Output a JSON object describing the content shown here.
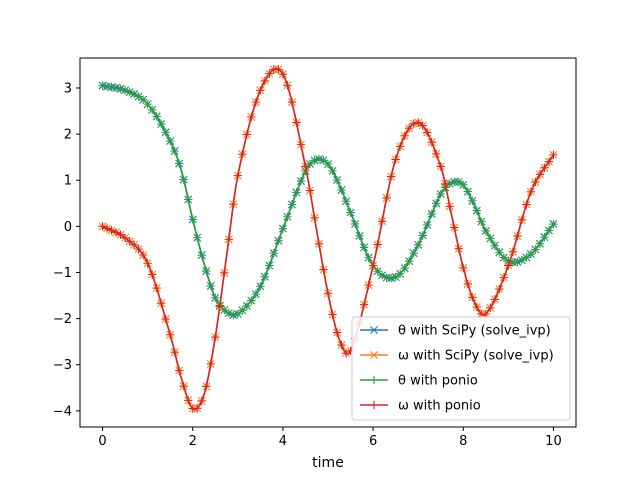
{
  "chart_data": {
    "type": "line",
    "xlabel": "time",
    "ylabel": "",
    "xlim": [
      -0.5,
      10.5
    ],
    "ylim": [
      -4.35,
      3.65
    ],
    "xticks": [
      0,
      2,
      4,
      6,
      8,
      10
    ],
    "yticks": [
      -4,
      -3,
      -2,
      -1,
      0,
      1,
      2,
      3
    ],
    "grid": false,
    "legend_position": "lower-right",
    "x": [
      0,
      0.5,
      1,
      1.5,
      1.75,
      2,
      2.25,
      2.5,
      2.75,
      3,
      3.5,
      4,
      4.5,
      4.75,
      5,
      5.25,
      5.5,
      6,
      6.5,
      7,
      7.5,
      7.75,
      8,
      8.25,
      8.5,
      9,
      9.5,
      10
    ],
    "series": [
      {
        "name": "θ with SciPy (solve_ivp)",
        "color": "#1f77b4",
        "marker": "x",
        "values": [
          3.05,
          2.95,
          2.65,
          1.85,
          1.2,
          0.15,
          -0.8,
          -1.55,
          -1.85,
          -1.9,
          -1.3,
          -0.05,
          1.2,
          1.45,
          1.35,
          0.9,
          0.3,
          -0.85,
          -1.1,
          -0.4,
          0.7,
          0.95,
          0.9,
          0.45,
          -0.1,
          -0.75,
          -0.6,
          0.05
        ]
      },
      {
        "name": "ω with SciPy (solve_ivp)",
        "color": "#ff7f0e",
        "marker": "x",
        "values": [
          0.0,
          -0.25,
          -0.8,
          -2.35,
          -3.3,
          -3.95,
          -3.65,
          -2.4,
          -0.65,
          1.1,
          2.95,
          3.3,
          1.3,
          -0.1,
          -1.45,
          -2.45,
          -2.7,
          -0.85,
          1.45,
          2.25,
          1.3,
          0.2,
          -0.9,
          -1.65,
          -1.9,
          -0.85,
          0.75,
          1.55
        ]
      },
      {
        "name": "θ with ponio",
        "color": "#2ca02c",
        "marker": "+",
        "values": [
          3.05,
          2.95,
          2.65,
          1.85,
          1.2,
          0.15,
          -0.8,
          -1.55,
          -1.85,
          -1.9,
          -1.3,
          -0.05,
          1.2,
          1.45,
          1.35,
          0.9,
          0.3,
          -0.85,
          -1.1,
          -0.4,
          0.7,
          0.95,
          0.9,
          0.45,
          -0.1,
          -0.75,
          -0.6,
          0.05
        ]
      },
      {
        "name": "ω with ponio",
        "color": "#d62728",
        "marker": "+",
        "values": [
          0.0,
          -0.25,
          -0.8,
          -2.35,
          -3.3,
          -3.95,
          -3.65,
          -2.4,
          -0.65,
          1.1,
          2.95,
          3.3,
          1.3,
          -0.1,
          -1.45,
          -2.45,
          -2.7,
          -0.85,
          1.45,
          2.25,
          1.3,
          0.2,
          -0.9,
          -1.65,
          -1.9,
          -0.85,
          0.75,
          1.55
        ]
      }
    ]
  }
}
